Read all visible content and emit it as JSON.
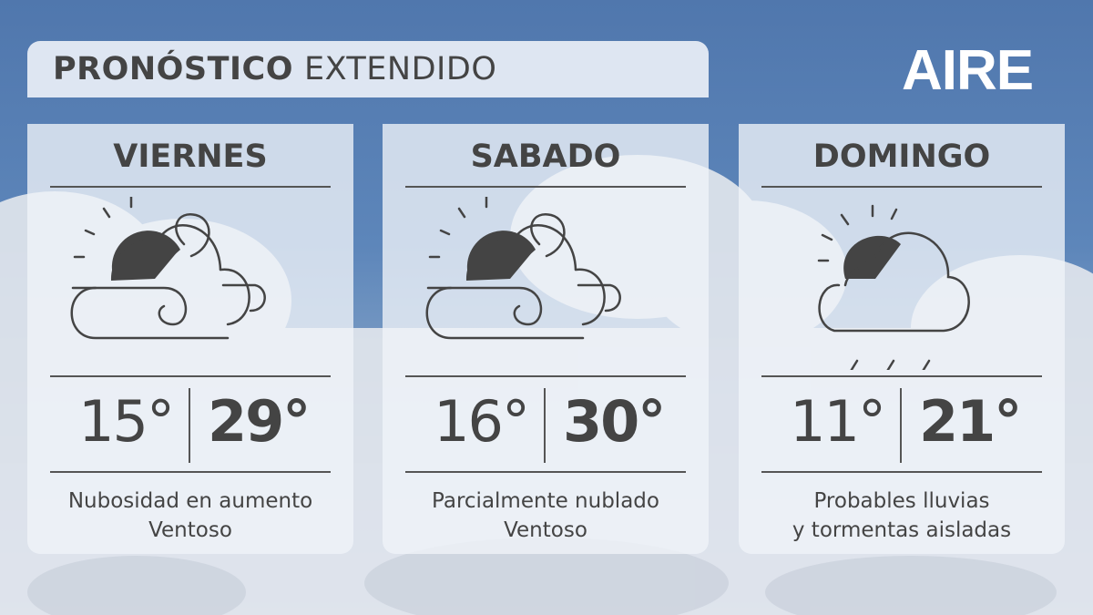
{
  "header": {
    "title_bold": "PRONÓSTICO",
    "title_rest": "EXTENDIDO",
    "logo": "AIRE"
  },
  "days": [
    {
      "name": "VIERNES",
      "icon": "partly-cloudy-windy-icon",
      "min": "15°",
      "max": "29°",
      "desc1": "Nubosidad en aumento",
      "desc2": "Ventoso"
    },
    {
      "name": "SABADO",
      "icon": "partly-cloudy-windy-icon",
      "min": "16°",
      "max": "30°",
      "desc1": "Parcialmente nublado",
      "desc2": "Ventoso"
    },
    {
      "name": "DOMINGO",
      "icon": "partly-cloudy-rain-icon",
      "min": "11°",
      "max": "21°",
      "desc1": "Probables lluvias",
      "desc2": "y tormentas aisladas"
    }
  ]
}
